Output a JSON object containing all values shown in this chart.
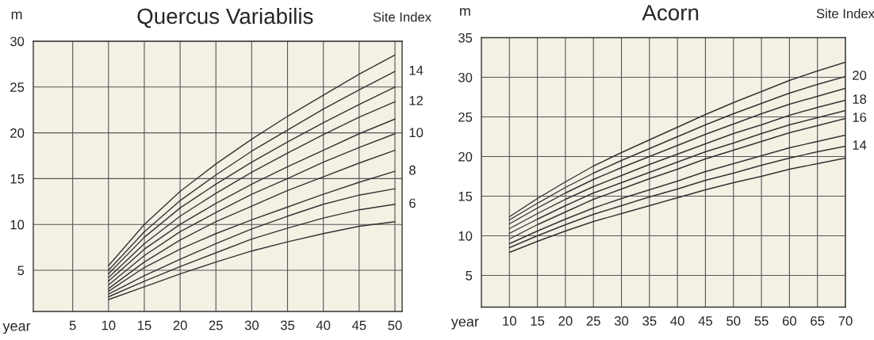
{
  "chart_data": [
    {
      "type": "line",
      "title": "Quercus Variabilis",
      "xlabel": "year",
      "ylabel": "m",
      "annotations": [
        "Site Index"
      ],
      "x": [
        10,
        15,
        20,
        25,
        30,
        35,
        40,
        45,
        50
      ],
      "xlim": [
        -0.5,
        51
      ],
      "ylim": [
        0.5,
        30
      ],
      "xticks": [
        5,
        10,
        15,
        20,
        25,
        30,
        35,
        40,
        45,
        50
      ],
      "yticks": [
        5,
        10,
        15,
        20,
        25,
        30
      ],
      "grid": true,
      "series": [
        {
          "color": "#333333",
          "values": [
            5.5,
            10.0,
            13.6,
            16.6,
            19.3,
            21.8,
            24.1,
            26.4,
            28.5
          ]
        },
        {
          "name": "14",
          "color": "#333333",
          "values": [
            5.0,
            9.2,
            12.6,
            15.4,
            18.0,
            20.3,
            22.6,
            24.7,
            26.7
          ]
        },
        {
          "color": "#333333",
          "values": [
            4.6,
            8.6,
            11.8,
            14.4,
            16.8,
            19.0,
            21.1,
            23.1,
            25.0
          ]
        },
        {
          "name": "12",
          "color": "#333333",
          "values": [
            4.2,
            7.9,
            10.9,
            13.4,
            15.7,
            17.8,
            19.8,
            21.7,
            23.4
          ]
        },
        {
          "color": "#333333",
          "values": [
            3.8,
            7.3,
            10.0,
            12.3,
            14.4,
            16.3,
            18.1,
            19.9,
            21.5
          ]
        },
        {
          "name": "10",
          "color": "#333333",
          "values": [
            3.4,
            6.6,
            9.2,
            11.3,
            13.3,
            15.0,
            16.8,
            18.4,
            19.9
          ]
        },
        {
          "color": "#333333",
          "values": [
            3.0,
            5.9,
            8.3,
            10.3,
            12.0,
            13.7,
            15.2,
            16.7,
            18.1
          ]
        },
        {
          "name": "8",
          "color": "#333333",
          "values": [
            2.7,
            5.3,
            7.3,
            9.0,
            10.5,
            11.9,
            13.3,
            14.6,
            15.8
          ]
        },
        {
          "color": "#333333",
          "values": [
            2.4,
            4.4,
            6.2,
            7.9,
            9.5,
            10.9,
            12.2,
            13.2,
            13.9
          ]
        },
        {
          "name": "6",
          "color": "#333333",
          "values": [
            2.1,
            3.8,
            5.4,
            6.9,
            8.4,
            9.6,
            10.7,
            11.6,
            12.2
          ]
        },
        {
          "color": "#333333",
          "values": [
            1.8,
            3.2,
            4.6,
            5.9,
            7.1,
            8.1,
            9.0,
            9.8,
            10.3
          ]
        }
      ]
    },
    {
      "type": "line",
      "title": "Acorn",
      "xlabel": "year",
      "ylabel": "m",
      "annotations": [
        "Site Index"
      ],
      "x": [
        10,
        15,
        20,
        25,
        30,
        35,
        40,
        45,
        50,
        55,
        60,
        65,
        70
      ],
      "xlim": [
        5,
        70
      ],
      "ylim": [
        1,
        35
      ],
      "xticks": [
        10,
        15,
        20,
        25,
        30,
        35,
        40,
        45,
        50,
        55,
        60,
        65,
        70
      ],
      "yticks": [
        5,
        10,
        15,
        20,
        25,
        30,
        35
      ],
      "grid": true,
      "series": [
        {
          "color": "#333333",
          "values": [
            12.4,
            14.7,
            16.8,
            18.8,
            20.5,
            22.1,
            23.7,
            25.3,
            26.8,
            28.2,
            29.6,
            30.8,
            31.9
          ]
        },
        {
          "name": "20",
          "color": "#333333",
          "values": [
            12.0,
            14.1,
            16.1,
            17.9,
            19.5,
            21.0,
            22.5,
            24.0,
            25.4,
            26.7,
            28.0,
            29.1,
            30.1
          ]
        },
        {
          "color": "#333333",
          "values": [
            11.5,
            13.5,
            15.4,
            17.1,
            18.6,
            20.0,
            21.4,
            22.8,
            24.1,
            25.4,
            26.6,
            27.6,
            28.6
          ]
        },
        {
          "name": "18",
          "color": "#333333",
          "values": [
            10.9,
            12.8,
            14.6,
            16.2,
            17.6,
            19.0,
            20.3,
            21.6,
            22.9,
            24.0,
            25.2,
            26.2,
            27.1
          ]
        },
        {
          "color": "#333333",
          "values": [
            10.3,
            12.1,
            13.8,
            15.4,
            16.7,
            18.0,
            19.3,
            20.6,
            21.7,
            22.9,
            24.0,
            24.9,
            25.8
          ]
        },
        {
          "name": "16",
          "color": "#333333",
          "values": [
            9.6,
            11.4,
            13.0,
            14.6,
            15.9,
            17.2,
            18.4,
            19.7,
            20.8,
            21.9,
            23.0,
            23.9,
            24.8
          ]
        },
        {
          "color": "#333333",
          "values": [
            9.0,
            10.6,
            12.1,
            13.5,
            14.7,
            15.8,
            16.9,
            18.1,
            19.1,
            20.1,
            21.1,
            21.9,
            22.7
          ]
        },
        {
          "name": "14",
          "color": "#333333",
          "values": [
            8.5,
            10.0,
            11.4,
            12.7,
            13.8,
            14.9,
            15.9,
            17.0,
            17.9,
            18.9,
            19.8,
            20.6,
            21.3
          ]
        },
        {
          "color": "#333333",
          "values": [
            7.9,
            9.3,
            10.6,
            11.8,
            12.8,
            13.8,
            14.8,
            15.8,
            16.7,
            17.5,
            18.4,
            19.1,
            19.8
          ]
        }
      ]
    }
  ]
}
